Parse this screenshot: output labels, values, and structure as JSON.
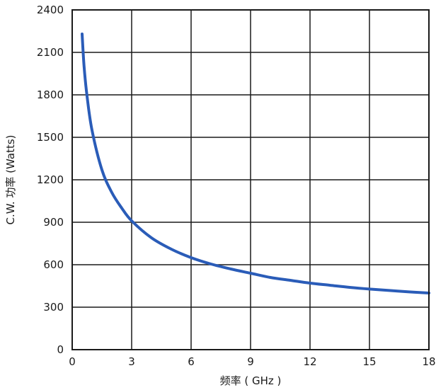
{
  "chart_data": {
    "type": "line",
    "title": "",
    "xlabel": "频率 ( GHz )",
    "ylabel": "C.W. 功率 (Watts)",
    "xlim": [
      0,
      18
    ],
    "ylim": [
      0,
      2400
    ],
    "x_ticks": [
      0,
      3,
      6,
      9,
      12,
      15,
      18
    ],
    "y_ticks": [
      0,
      300,
      600,
      900,
      1200,
      1500,
      1800,
      2100,
      2400
    ],
    "grid": true,
    "series": [
      {
        "color": "#2a5cb8",
        "x": [
          0.5,
          0.6,
          0.75,
          1,
          1.5,
          2,
          2.5,
          3,
          4,
          5,
          6,
          7,
          8,
          9,
          10,
          11,
          12,
          13,
          14,
          15,
          16,
          17,
          18
        ],
        "y": [
          2230,
          2000,
          1790,
          1550,
          1270,
          1110,
          1000,
          910,
          790,
          710,
          650,
          605,
          570,
          540,
          510,
          490,
          470,
          455,
          440,
          428,
          418,
          408,
          400
        ]
      }
    ]
  }
}
